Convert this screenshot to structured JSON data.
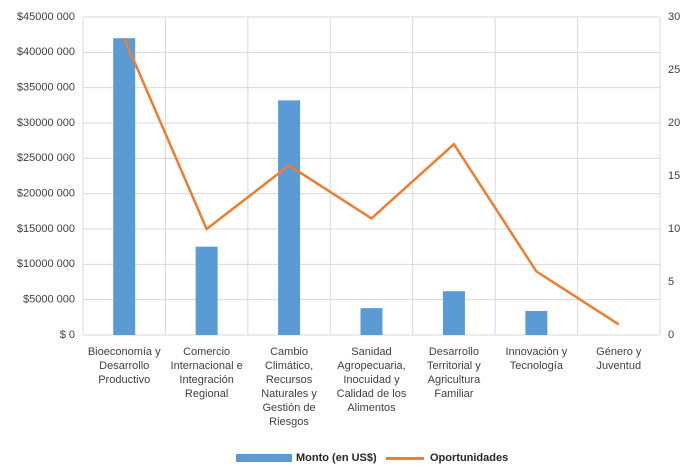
{
  "chart_data": {
    "type": "bar_line",
    "categories": [
      "Bioeconomía y Desarrollo Productivo",
      "Comercio Internacional e Integración Regional",
      "Cambio Climático, Recursos Naturales y Gestión de Riesgos",
      "Sanidad Agropecuaria, Inocuidad y Calidad de los Alimentos",
      "Desarrollo Territorial y Agricultura Familiar",
      "Innovación y Tecnología",
      "Género y Juventud"
    ],
    "series": [
      {
        "name": "Monto (en US$)",
        "color": "#5b9bd5",
        "type": "bar",
        "values": [
          42000000,
          12500000,
          33200000,
          3800000,
          6200000,
          3400000,
          0
        ]
      },
      {
        "name": "Oportunidades",
        "color": "#ed7d31",
        "type": "line",
        "axis": "y2",
        "values": [
          28,
          10,
          16,
          11,
          18,
          6,
          1
        ]
      }
    ],
    "ylim": [
      0,
      45000000
    ],
    "yticks": [
      {
        "value": 0,
        "label": "$ 0"
      },
      {
        "value": 5000000,
        "label": "$5000 000"
      },
      {
        "value": 10000000,
        "label": "$10000 000"
      },
      {
        "value": 15000000,
        "label": "$15000 000"
      },
      {
        "value": 20000000,
        "label": "$20000 000"
      },
      {
        "value": 25000000,
        "label": "$25000 000"
      },
      {
        "value": 30000000,
        "label": "$30000 000"
      },
      {
        "value": 35000000,
        "label": "$35000 000"
      },
      {
        "value": 40000000,
        "label": "$40000 000"
      },
      {
        "value": 45000000,
        "label": "$45000 000"
      }
    ],
    "y2lim": [
      0,
      30
    ],
    "y2ticks": [
      0,
      5,
      10,
      15,
      20,
      25,
      30
    ],
    "grid": true,
    "legend": "bottom"
  }
}
